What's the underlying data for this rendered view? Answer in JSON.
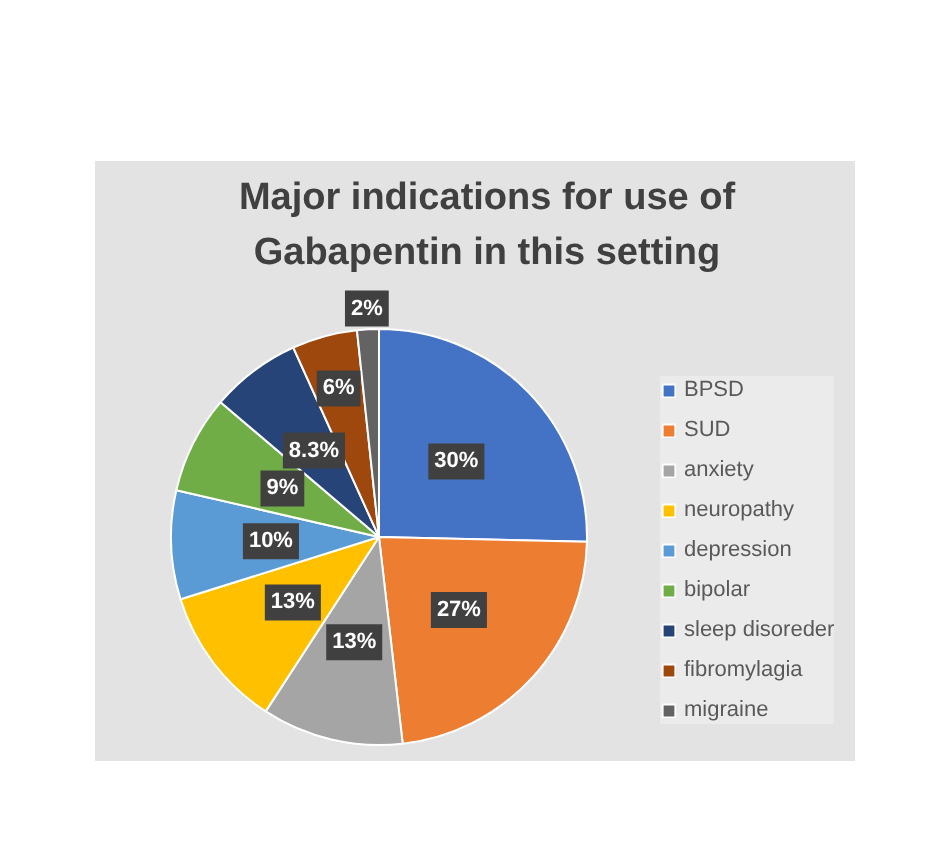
{
  "chart_data": {
    "type": "pie",
    "title": "Major indications for use of Gabapentin in this setting",
    "categories": [
      "BPSD",
      "SUD",
      "anxiety",
      "neuropathy",
      "depression",
      "bipolar",
      "sleep disoreder",
      "fibromylagia",
      "migraine"
    ],
    "values": [
      30,
      27,
      13,
      13,
      10,
      9,
      8.3,
      6,
      2
    ],
    "colors": [
      "#4472c4",
      "#ed7d31",
      "#a5a5a5",
      "#ffc000",
      "#5b9bd5",
      "#70ad47",
      "#264478",
      "#9e480e",
      "#636363"
    ],
    "value_labels": [
      "30%",
      "27%",
      "13%",
      "13%",
      "10%",
      "9%",
      "8.3%",
      "6%",
      "2%"
    ],
    "legend": "right"
  }
}
